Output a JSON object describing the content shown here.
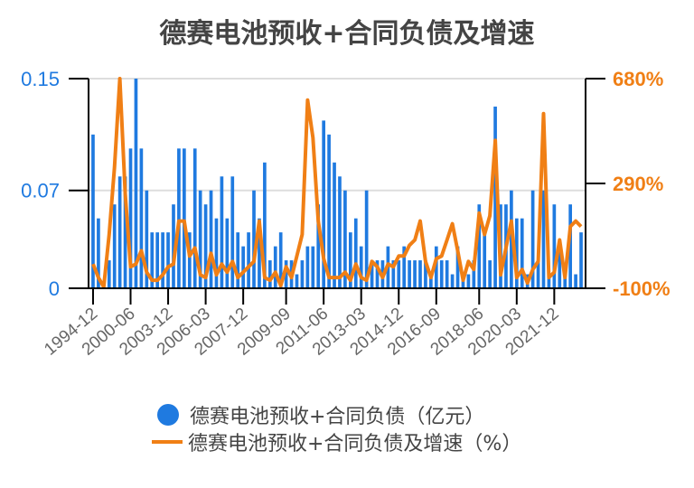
{
  "title": "德赛电池预收+合同负债及增速",
  "colors": {
    "bar": "#1f7ae0",
    "line": "#f07f15",
    "axis": "#000000",
    "grid": "#dddddd",
    "title": "#444444"
  },
  "legend": [
    {
      "label": "德赛电池预收+合同负债（亿元）",
      "type": "dot",
      "color": "#1f7ae0"
    },
    {
      "label": "德赛电池预收+合同负债及增速（%）",
      "type": "line",
      "color": "#f07f15"
    }
  ],
  "chart_data": {
    "type": "bar+line",
    "title": "德赛电池预收+合同负债及增速",
    "xlabel": "",
    "ylabel_left": "亿元",
    "ylabel_right": "%",
    "ylim_left": [
      0,
      0.15
    ],
    "ylim_right": [
      -100,
      680
    ],
    "yticks_left": [
      "0.15",
      "0.07",
      "0"
    ],
    "yticks_right": [
      "680%",
      "290%",
      "-100%"
    ],
    "xtick_labels": [
      "1994-12",
      "2000-06",
      "2003-12",
      "2006-03",
      "2007-12",
      "2009-09",
      "2011-06",
      "2013-03",
      "2014-12",
      "2016-09",
      "2018-06",
      "2020-03",
      "2021-12"
    ],
    "xtick_indices": [
      0,
      7,
      14,
      21,
      28,
      36,
      43,
      50,
      57,
      64,
      72,
      79,
      86
    ],
    "legend_position": "bottom",
    "grid": true,
    "series": [
      {
        "name": "德赛电池预收+合同负债（亿元）",
        "type": "bar",
        "axis": "left",
        "values": [
          0.11,
          0.05,
          0.0,
          0.02,
          0.06,
          0.08,
          0.08,
          0.1,
          0.15,
          0.1,
          0.07,
          0.04,
          0.04,
          0.04,
          0.04,
          0.06,
          0.1,
          0.1,
          0.04,
          0.1,
          0.07,
          0.06,
          0.07,
          0.05,
          0.08,
          0.05,
          0.08,
          0.04,
          0.03,
          0.04,
          0.07,
          0.05,
          0.09,
          0.02,
          0.03,
          0.04,
          0.02,
          0.02,
          0.01,
          0.02,
          0.03,
          0.03,
          0.06,
          0.12,
          0.11,
          0.09,
          0.08,
          0.07,
          0.04,
          0.05,
          0.03,
          0.07,
          0.02,
          0.02,
          0.02,
          0.03,
          0.02,
          0.02,
          0.03,
          0.02,
          0.02,
          0.02,
          0.02,
          0.01,
          0.03,
          0.02,
          0.02,
          0.01,
          0.03,
          0.01,
          0.01,
          0.02,
          0.06,
          0.04,
          0.02,
          0.13,
          0.06,
          0.06,
          0.07,
          0.05,
          0.05,
          0.01,
          0.07,
          0.02,
          0.07,
          0.01,
          0.06,
          0.03,
          0.01,
          0.06,
          0.01,
          0.04
        ]
      },
      {
        "name": "德赛电池预收+合同负债及增速（%）",
        "type": "line",
        "axis": "right",
        "values": [
          -10,
          -60,
          -95,
          100,
          350,
          680,
          250,
          -20,
          -10,
          40,
          -40,
          -70,
          -70,
          -50,
          -20,
          -10,
          150,
          150,
          20,
          50,
          -50,
          -60,
          30,
          -50,
          -10,
          -40,
          0,
          -60,
          -40,
          -20,
          0,
          150,
          -60,
          -70,
          -40,
          -90,
          -20,
          -60,
          20,
          100,
          600,
          460,
          150,
          10,
          -60,
          -60,
          -60,
          -40,
          -70,
          -10,
          -60,
          -70,
          0,
          -20,
          -60,
          -10,
          -20,
          20,
          20,
          60,
          80,
          150,
          0,
          -60,
          10,
          20,
          80,
          140,
          40,
          -70,
          0,
          -30,
          180,
          100,
          170,
          450,
          -50,
          50,
          150,
          -60,
          -30,
          -80,
          -30,
          0,
          550,
          -60,
          -40,
          80,
          -60,
          130,
          150,
          130
        ]
      }
    ]
  }
}
